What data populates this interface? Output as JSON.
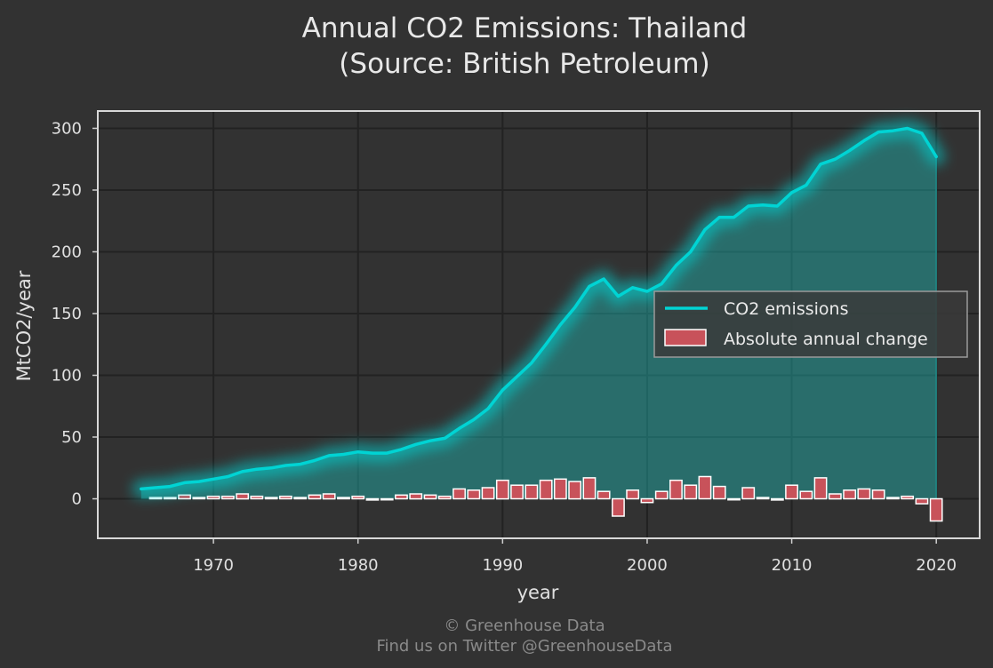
{
  "chart_data": {
    "type": "line",
    "title_line1": "Annual CO2 Emissions: Thailand",
    "title_line2": "(Source: British Petroleum)",
    "xlabel": "year",
    "ylabel": "MtCO2/year",
    "xlim": [
      1962,
      2023
    ],
    "ylim": [
      -32,
      314
    ],
    "xticks": [
      1970,
      1980,
      1990,
      2000,
      2010,
      2020
    ],
    "yticks": [
      0,
      50,
      100,
      150,
      200,
      250,
      300
    ],
    "grid": true,
    "legend_position": "center-right",
    "series": [
      {
        "name": "CO2 emissions",
        "type": "line",
        "color": "#00d4d4",
        "x": [
          1965,
          1966,
          1967,
          1968,
          1969,
          1970,
          1971,
          1972,
          1973,
          1974,
          1975,
          1976,
          1977,
          1978,
          1979,
          1980,
          1981,
          1982,
          1983,
          1984,
          1985,
          1986,
          1987,
          1988,
          1989,
          1990,
          1991,
          1992,
          1993,
          1994,
          1995,
          1996,
          1997,
          1998,
          1999,
          2000,
          2001,
          2002,
          2003,
          2004,
          2005,
          2006,
          2007,
          2008,
          2009,
          2010,
          2011,
          2012,
          2013,
          2014,
          2015,
          2016,
          2017,
          2018,
          2019,
          2020
        ],
        "values": [
          8,
          9,
          10,
          13,
          14,
          16,
          18,
          22,
          24,
          25,
          27,
          28,
          31,
          35,
          36,
          38,
          37,
          37,
          40,
          44,
          47,
          49,
          57,
          64,
          73,
          88,
          99,
          110,
          125,
          141,
          155,
          172,
          178,
          164,
          171,
          168,
          174,
          189,
          200,
          218,
          228,
          228,
          237,
          238,
          237,
          248,
          254,
          271,
          275,
          282,
          290,
          297,
          298,
          300,
          296,
          277
        ]
      },
      {
        "name": "Absolute annual change",
        "type": "bar",
        "color": "#c8525a",
        "x": [
          1966,
          1967,
          1968,
          1969,
          1970,
          1971,
          1972,
          1973,
          1974,
          1975,
          1976,
          1977,
          1978,
          1979,
          1980,
          1981,
          1982,
          1983,
          1984,
          1985,
          1986,
          1987,
          1988,
          1989,
          1990,
          1991,
          1992,
          1993,
          1994,
          1995,
          1996,
          1997,
          1998,
          1999,
          2000,
          2001,
          2002,
          2003,
          2004,
          2005,
          2006,
          2007,
          2008,
          2009,
          2010,
          2011,
          2012,
          2013,
          2014,
          2015,
          2016,
          2017,
          2018,
          2019,
          2020
        ],
        "values": [
          1,
          1,
          3,
          1,
          2,
          2,
          4,
          2,
          1,
          2,
          1,
          3,
          4,
          1,
          2,
          -1,
          0,
          3,
          4,
          3,
          2,
          8,
          7,
          9,
          15,
          11,
          11,
          15,
          16,
          14,
          17,
          6,
          -14,
          7,
          -3,
          6,
          15,
          11,
          18,
          10,
          0,
          9,
          1,
          -1,
          11,
          6,
          17,
          4,
          7,
          8,
          7,
          1,
          2,
          -4,
          -18
        ]
      }
    ]
  },
  "credits": {
    "line1": "© Greenhouse Data",
    "line2": "Find us on Twitter @GreenhouseData"
  }
}
